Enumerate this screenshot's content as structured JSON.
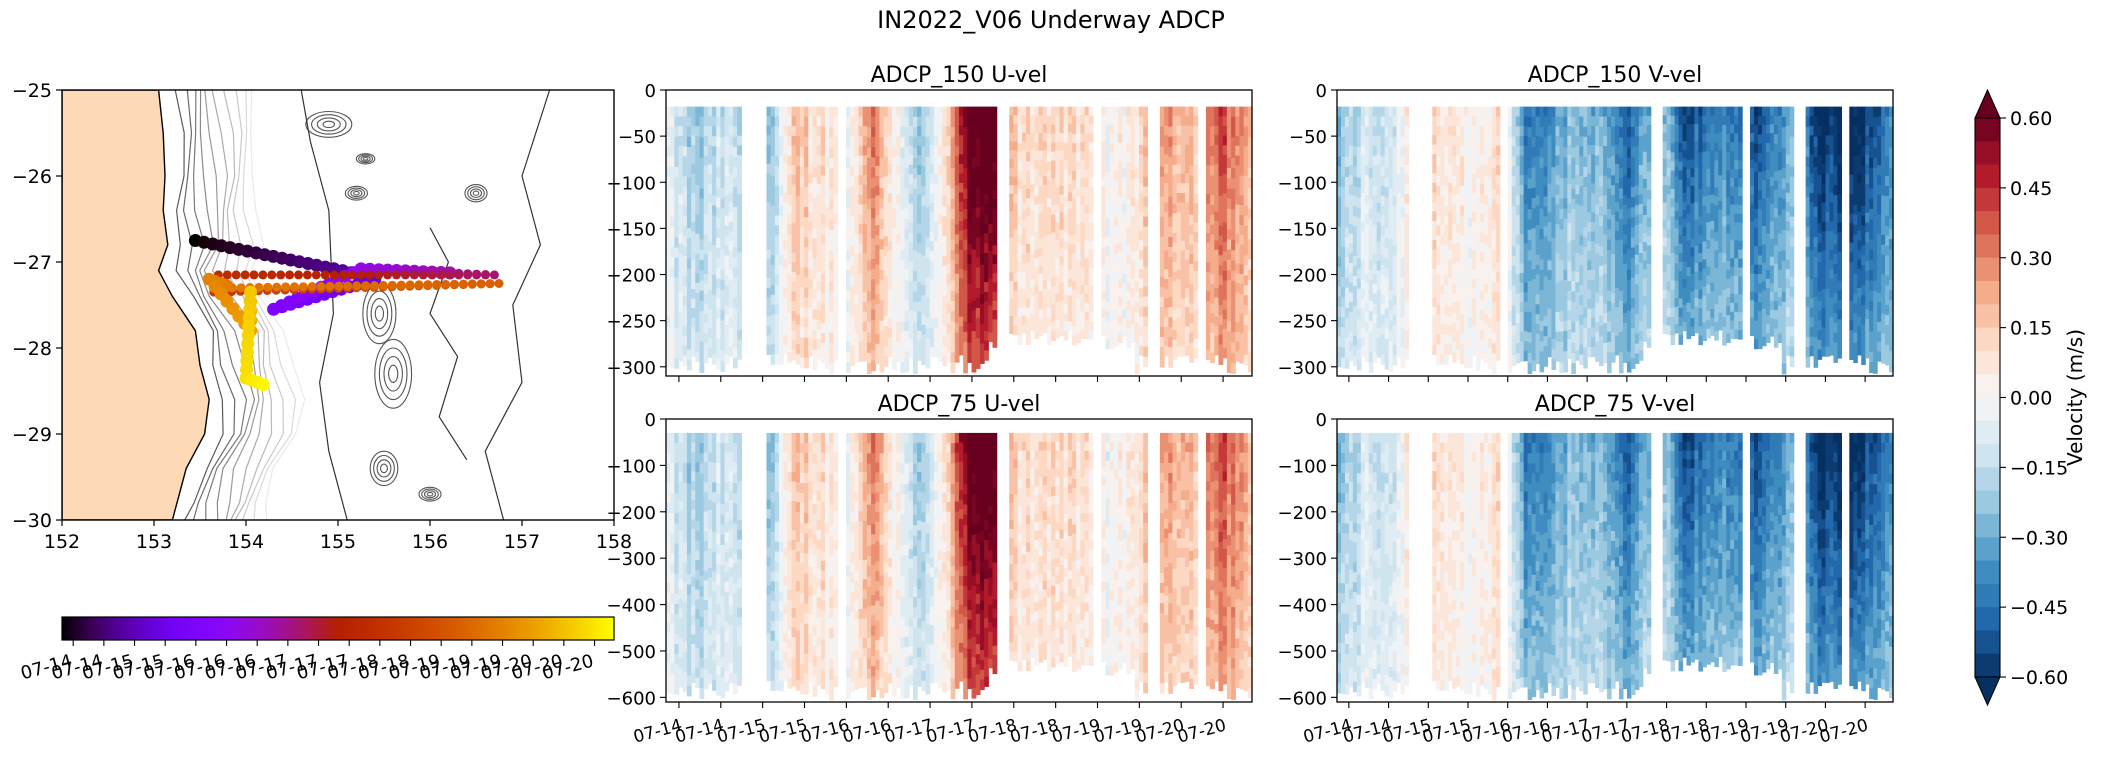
{
  "figure_title": "IN2022_V06 Underway ADCP",
  "chart_data": [
    {
      "type": "map",
      "panel": "track-map",
      "xlim": [
        152,
        158
      ],
      "ylim": [
        -30,
        -25
      ],
      "x_ticks": [
        152,
        153,
        154,
        155,
        156,
        157,
        158
      ],
      "y_ticks": [
        -25,
        -26,
        -27,
        -28,
        -29,
        -30
      ],
      "x_tick_labels": [
        "152",
        "153",
        "154",
        "155",
        "156",
        "157",
        "158"
      ],
      "y_tick_labels": [
        "−25",
        "−26",
        "−27",
        "−28",
        "−29",
        "−30"
      ],
      "land_color": "#fdd9b5",
      "track": [
        {
          "lon": 153.45,
          "lat": -26.75,
          "t": 0.0
        },
        {
          "lon": 155.05,
          "lat": -27.1,
          "t": 0.1
        },
        {
          "lon": 155.4,
          "lat": -27.2,
          "t": 0.16
        },
        {
          "lon": 154.3,
          "lat": -27.55,
          "t": 0.24
        },
        {
          "lon": 155.25,
          "lat": -27.08,
          "t": 0.32
        },
        {
          "lon": 156.7,
          "lat": -27.15,
          "t": 0.43
        },
        {
          "lon": 153.7,
          "lat": -27.15,
          "t": 0.56
        },
        {
          "lon": 153.65,
          "lat": -27.35,
          "t": 0.6
        },
        {
          "lon": 156.75,
          "lat": -27.25,
          "t": 0.72
        },
        {
          "lon": 153.85,
          "lat": -27.3,
          "t": 0.78
        },
        {
          "lon": 153.6,
          "lat": -27.2,
          "t": 0.8
        },
        {
          "lon": 154.05,
          "lat": -27.8,
          "t": 0.86
        },
        {
          "lon": 154.05,
          "lat": -27.35,
          "t": 0.92
        },
        {
          "lon": 154.0,
          "lat": -28.35,
          "t": 0.96
        },
        {
          "lon": 154.25,
          "lat": -28.45,
          "t": 1.0
        }
      ],
      "colorbar": {
        "cmap": "gnuplot",
        "tick_labels": [
          "07-14",
          "07-14",
          "07-15",
          "07-15",
          "07-16",
          "07-16",
          "07-16",
          "07-17",
          "07-17",
          "07-17",
          "07-18",
          "07-18",
          "07-19",
          "07-19",
          "07-19",
          "07-20",
          "07-20",
          "07-20"
        ]
      }
    },
    {
      "type": "heatmap",
      "panel": "adcp150-u",
      "title": "ADCP_150 U-vel",
      "variable": "u",
      "ylim": [
        -310,
        0
      ],
      "y_ticks": [
        0,
        -50,
        -100,
        -150,
        -200,
        -250,
        -300
      ],
      "y_tick_labels": [
        "0",
        "−50",
        "−100",
        "−150",
        "−200",
        "−250",
        "−300"
      ],
      "top_depth": -18,
      "x_tick_labels": []
    },
    {
      "type": "heatmap",
      "panel": "adcp150-v",
      "title": "ADCP_150 V-vel",
      "variable": "v",
      "ylim": [
        -310,
        0
      ],
      "y_ticks": [
        0,
        -50,
        -100,
        -150,
        -200,
        -250,
        -300
      ],
      "y_tick_labels": [
        "0",
        "−50",
        "−100",
        "−150",
        "−200",
        "−250",
        "−300"
      ],
      "top_depth": -18,
      "x_tick_labels": []
    },
    {
      "type": "heatmap",
      "panel": "adcp75-u",
      "title": "ADCP_75 U-vel",
      "variable": "u",
      "ylim": [
        -610,
        0
      ],
      "y_ticks": [
        0,
        -100,
        -200,
        -300,
        -400,
        -500,
        -600
      ],
      "y_tick_labels": [
        "0",
        "−100",
        "−200",
        "−300",
        "−400",
        "−500",
        "−600"
      ],
      "top_depth": -30,
      "x_tick_labels": [
        "07-14",
        "07-14",
        "07-15",
        "07-15",
        "07-16",
        "07-16",
        "07-17",
        "07-17",
        "07-18",
        "07-18",
        "07-19",
        "07-19",
        "07-20",
        "07-20"
      ]
    },
    {
      "type": "heatmap",
      "panel": "adcp75-v",
      "title": "ADCP_75 V-vel",
      "variable": "v",
      "ylim": [
        -610,
        0
      ],
      "y_ticks": [
        0,
        -100,
        -200,
        -300,
        -400,
        -500,
        -600
      ],
      "y_tick_labels": [
        "0",
        "−100",
        "−200",
        "−300",
        "−400",
        "−500",
        "−600"
      ],
      "top_depth": -30,
      "x_tick_labels": [
        "07-14",
        "07-14",
        "07-15",
        "07-15",
        "07-16",
        "07-16",
        "07-17",
        "07-17",
        "07-18",
        "07-18",
        "07-19",
        "07-19",
        "07-20",
        "07-20"
      ]
    },
    {
      "type": "colorbar",
      "panel": "velocity-colorbar",
      "label": "Velocity (m/s)",
      "vmin": -0.6,
      "vmax": 0.6,
      "levels": 24,
      "cmap": "RdBu_r",
      "extend": "both",
      "ticks": [
        0.6,
        0.45,
        0.3,
        0.15,
        0.0,
        -0.15,
        -0.3,
        -0.45,
        -0.6
      ],
      "tick_labels": [
        "0.60",
        "0.45",
        "0.30",
        "0.15",
        "0.00",
        "−0.15",
        "−0.30",
        "−0.45",
        "−0.60"
      ]
    }
  ],
  "time_axis": {
    "columns": 140,
    "gaps": [
      [
        0.13,
        0.175
      ],
      [
        0.29,
        0.305
      ],
      [
        0.565,
        0.585
      ],
      [
        0.73,
        0.745
      ],
      [
        0.82,
        0.84
      ],
      [
        0.905,
        0.925
      ]
    ],
    "u_profile": [
      {
        "t": 0.0,
        "u": -0.05
      },
      {
        "t": 0.05,
        "u": -0.25
      },
      {
        "t": 0.1,
        "u": -0.12
      },
      {
        "t": 0.18,
        "u": -0.28
      },
      {
        "t": 0.22,
        "u": 0.18
      },
      {
        "t": 0.27,
        "u": 0.1
      },
      {
        "t": 0.31,
        "u": -0.05
      },
      {
        "t": 0.35,
        "u": 0.35
      },
      {
        "t": 0.39,
        "u": 0.05
      },
      {
        "t": 0.44,
        "u": -0.25
      },
      {
        "t": 0.48,
        "u": 0.12
      },
      {
        "t": 0.52,
        "u": 0.7
      },
      {
        "t": 0.56,
        "u": 0.7
      },
      {
        "t": 0.6,
        "u": 0.08
      },
      {
        "t": 0.66,
        "u": 0.15
      },
      {
        "t": 0.72,
        "u": 0.05
      },
      {
        "t": 0.77,
        "u": -0.02
      },
      {
        "t": 0.85,
        "u": 0.28
      },
      {
        "t": 0.9,
        "u": 0.2
      },
      {
        "t": 0.95,
        "u": 0.4
      },
      {
        "t": 1.0,
        "u": 0.22
      }
    ],
    "v_profile": [
      {
        "t": 0.0,
        "v": -0.3
      },
      {
        "t": 0.05,
        "v": -0.1
      },
      {
        "t": 0.1,
        "v": -0.12
      },
      {
        "t": 0.14,
        "v": 0.15
      },
      {
        "t": 0.19,
        "v": 0.1
      },
      {
        "t": 0.24,
        "v": -0.02
      },
      {
        "t": 0.3,
        "v": 0.12
      },
      {
        "t": 0.34,
        "v": -0.45
      },
      {
        "t": 0.4,
        "v": -0.3
      },
      {
        "t": 0.47,
        "v": -0.25
      },
      {
        "t": 0.53,
        "v": -0.5
      },
      {
        "t": 0.58,
        "v": -0.12
      },
      {
        "t": 0.62,
        "v": -0.55
      },
      {
        "t": 0.7,
        "v": -0.4
      },
      {
        "t": 0.76,
        "v": -0.55
      },
      {
        "t": 0.82,
        "v": -0.25
      },
      {
        "t": 0.87,
        "v": -0.65
      },
      {
        "t": 0.94,
        "v": -0.6
      },
      {
        "t": 1.0,
        "v": -0.4
      }
    ]
  }
}
